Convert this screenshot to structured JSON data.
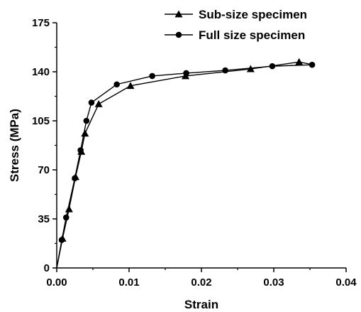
{
  "chart_data": {
    "type": "line",
    "title": "",
    "xlabel": "Strain",
    "ylabel": "Stress (MPa)",
    "xlim": [
      0.0,
      0.04
    ],
    "ylim": [
      0,
      175
    ],
    "xticks": [
      "0.00",
      "0.01",
      "0.02",
      "0.03",
      "0.04"
    ],
    "yticks": [
      "0",
      "35",
      "70",
      "105",
      "140",
      "175"
    ],
    "grid": false,
    "legend": "top-right",
    "series": [
      {
        "name": "Sub-size specimen",
        "marker": "triangle",
        "color": "#000000",
        "x": [
          0.0,
          0.0008,
          0.0017,
          0.0026,
          0.0034,
          0.0039,
          0.0058,
          0.0102,
          0.0178,
          0.0268,
          0.0335,
          0.0355
        ],
        "y": [
          0,
          21,
          42,
          65,
          83,
          96,
          117,
          130,
          137,
          142,
          147,
          145
        ]
      },
      {
        "name": "Full size specimen",
        "marker": "circle",
        "color": "#000000",
        "x": [
          0.0,
          0.0007,
          0.0013,
          0.0025,
          0.0033,
          0.0041,
          0.0048,
          0.0083,
          0.0132,
          0.0179,
          0.0233,
          0.0298,
          0.0353
        ],
        "y": [
          0,
          20,
          36,
          64,
          84,
          105,
          118,
          131,
          137,
          139,
          141,
          144,
          145
        ]
      }
    ]
  }
}
